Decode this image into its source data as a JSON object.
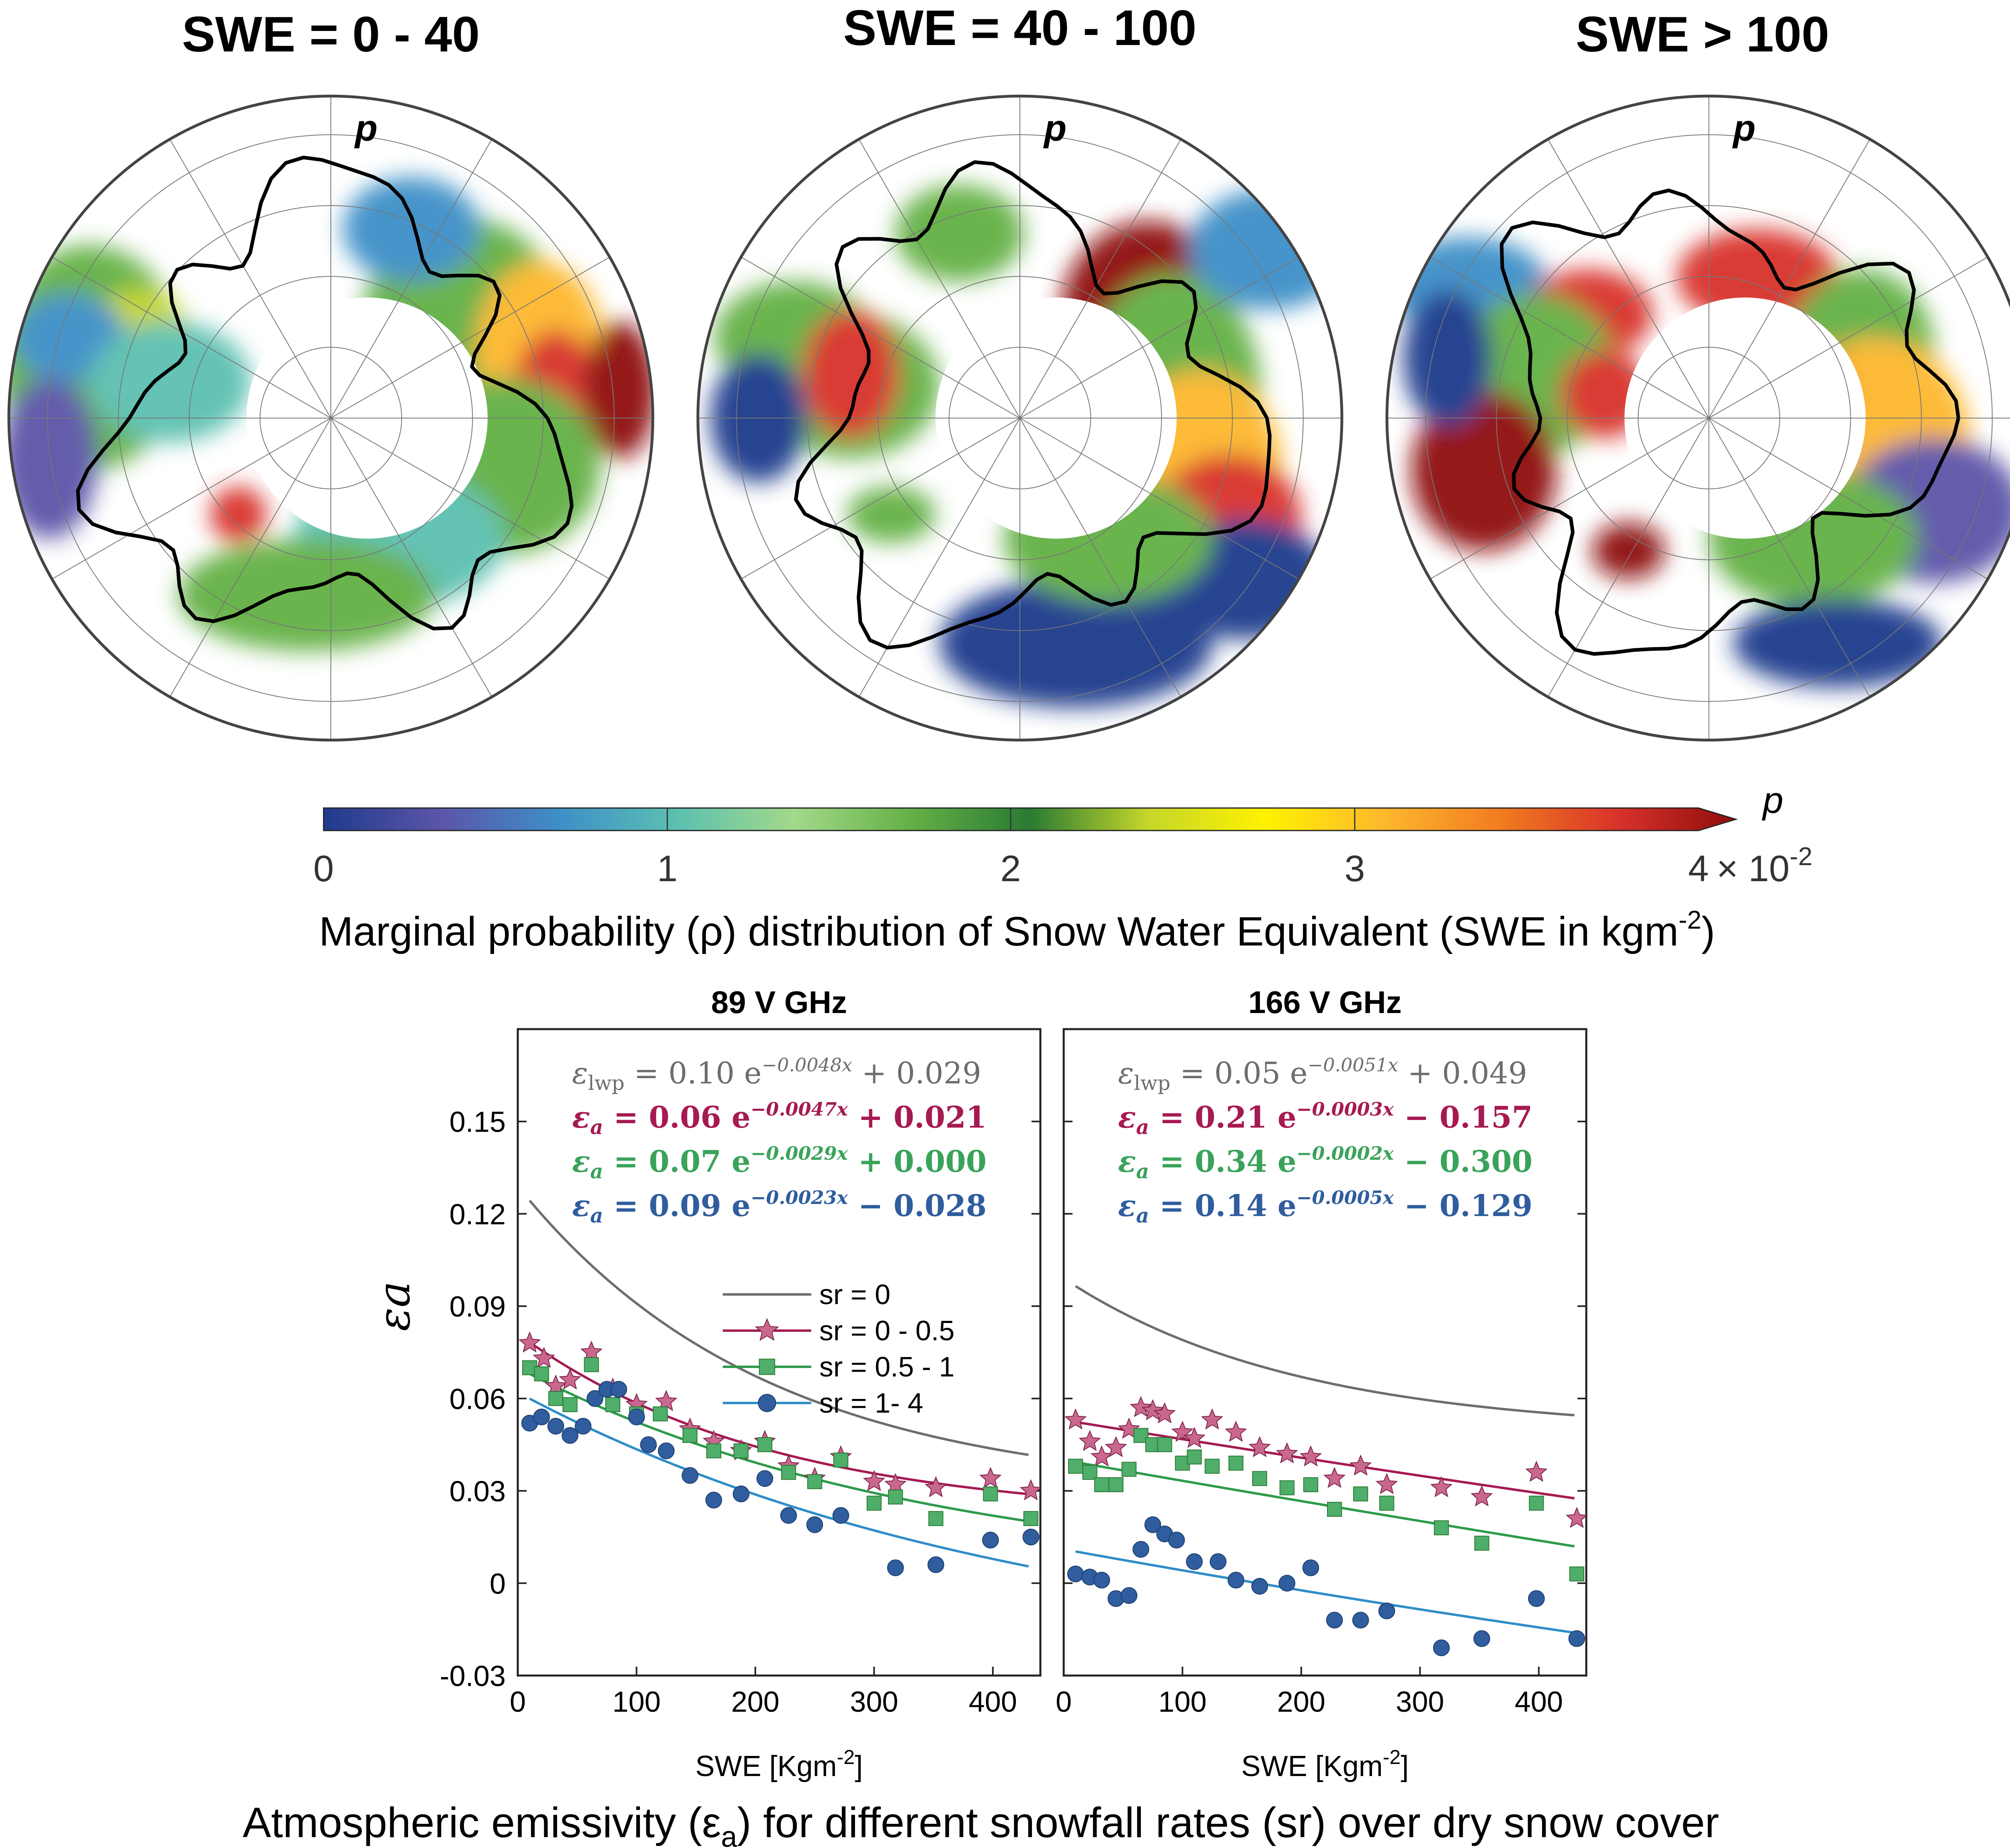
{
  "maps": {
    "titles": [
      "SWE = 0 - 40",
      "SWE = 40 - 100",
      "SWE > 100"
    ],
    "map_label": "p",
    "colorbar": {
      "label": "p",
      "ticks": [
        "0",
        "1",
        "2",
        "3",
        "4"
      ],
      "exponent_label": "× 10",
      "exponent_power": "-2",
      "caption_main": "Marginal probability (ρ) distribution of Snow Water Equivalent (SWE in kgm",
      "caption_power": "-2",
      "caption_end": ")",
      "colors": [
        "#1f3b8c",
        "#5c55a8",
        "#3d8fc7",
        "#5cc0b0",
        "#a3d98a",
        "#63b045",
        "#2a7a33",
        "#c4d62a",
        "#fff200",
        "#fdb82d",
        "#f17c20",
        "#d8322a",
        "#8f0d0d"
      ]
    }
  },
  "bottom_caption": {
    "prefix": "Atmospheric emissivity (ε",
    "sub": "a",
    "suffix": ") for different snowfall rates (sr) over dry snow cover"
  },
  "chart_data": [
    {
      "type": "scatter",
      "title": "89 V GHz",
      "xlabel": "SWE [Kgm",
      "xlabel_power": "-2",
      "xlabel_end": "]",
      "ylabel": "εa",
      "xlim": [
        0,
        440
      ],
      "ylim": [
        -0.03,
        0.18
      ],
      "xticks": [
        0,
        100,
        200,
        300,
        400
      ],
      "yticks": [
        -0.03,
        0,
        0.03,
        0.06,
        0.09,
        0.12,
        0.15
      ],
      "ytick_labels": [
        "-0.03",
        "0",
        "0.03",
        "0.06",
        "0.09",
        "0.12",
        "0.15"
      ],
      "equations": [
        {
          "lhs": "ε",
          "lhs_sub": "lwp",
          "coef": "0.10",
          "exp": "−0.0048x",
          "tail": "+ 0.029",
          "color": "#6d6d6d"
        },
        {
          "lhs": "ε",
          "lhs_sub": "a",
          "coef": "0.06",
          "exp": "−0.0047x",
          "tail": "+ 0.021",
          "color": "#a61a52"
        },
        {
          "lhs": "ε",
          "lhs_sub": "a",
          "coef": "0.07",
          "exp": "−0.0029x",
          "tail": "+ 0.000",
          "color": "#3aa35a"
        },
        {
          "lhs": "ε",
          "lhs_sub": "a",
          "coef": "0.09",
          "exp": "−0.0023x",
          "tail": "− 0.028",
          "color": "#2f5d9e"
        }
      ],
      "legend": [
        "sr = 0",
        "sr = 0 - 0.5",
        "sr = 0.5 - 1",
        "sr = 1- 4"
      ],
      "fits": [
        {
          "a": 0.1,
          "b": 0.0048,
          "c": 0.029
        },
        {
          "a": 0.06,
          "b": 0.0047,
          "c": 0.021
        },
        {
          "a": 0.07,
          "b": 0.0029,
          "c": 0.0
        },
        {
          "a": 0.09,
          "b": 0.0023,
          "c": -0.028
        }
      ],
      "points": [
        [],
        [
          [
            10,
            0.078
          ],
          [
            22,
            0.073
          ],
          [
            32,
            0.064
          ],
          [
            44,
            0.066
          ],
          [
            62,
            0.075
          ],
          [
            80,
            0.063
          ],
          [
            100,
            0.058
          ],
          [
            125,
            0.059
          ],
          [
            145,
            0.05
          ],
          [
            165,
            0.046
          ],
          [
            188,
            0.043
          ],
          [
            208,
            0.046
          ],
          [
            228,
            0.038
          ],
          [
            250,
            0.034
          ],
          [
            272,
            0.041
          ],
          [
            300,
            0.033
          ],
          [
            318,
            0.032
          ],
          [
            352,
            0.031
          ],
          [
            398,
            0.034
          ],
          [
            432,
            0.03
          ]
        ],
        [
          [
            10,
            0.07
          ],
          [
            20,
            0.068
          ],
          [
            32,
            0.06
          ],
          [
            44,
            0.058
          ],
          [
            62,
            0.071
          ],
          [
            80,
            0.058
          ],
          [
            100,
            0.055
          ],
          [
            120,
            0.055
          ],
          [
            145,
            0.048
          ],
          [
            165,
            0.043
          ],
          [
            188,
            0.043
          ],
          [
            208,
            0.045
          ],
          [
            228,
            0.036
          ],
          [
            250,
            0.033
          ],
          [
            272,
            0.04
          ],
          [
            300,
            0.026
          ],
          [
            318,
            0.028
          ],
          [
            352,
            0.021
          ],
          [
            398,
            0.029
          ],
          [
            432,
            0.021
          ]
        ],
        [
          [
            10,
            0.052
          ],
          [
            20,
            0.054
          ],
          [
            32,
            0.051
          ],
          [
            44,
            0.048
          ],
          [
            55,
            0.051
          ],
          [
            65,
            0.06
          ],
          [
            75,
            0.063
          ],
          [
            85,
            0.063
          ],
          [
            100,
            0.054
          ],
          [
            110,
            0.045
          ],
          [
            125,
            0.043
          ],
          [
            145,
            0.035
          ],
          [
            165,
            0.027
          ],
          [
            188,
            0.029
          ],
          [
            208,
            0.034
          ],
          [
            228,
            0.022
          ],
          [
            250,
            0.019
          ],
          [
            272,
            0.022
          ],
          [
            318,
            0.005
          ],
          [
            352,
            0.006
          ],
          [
            398,
            0.014
          ],
          [
            432,
            0.015
          ]
        ]
      ]
    },
    {
      "type": "scatter",
      "title": "166 V GHz",
      "xlabel": "SWE [Kgm",
      "xlabel_power": "-2",
      "xlabel_end": "]",
      "ylabel": "",
      "xlim": [
        0,
        440
      ],
      "ylim": [
        -0.03,
        0.18
      ],
      "xticks": [
        0,
        100,
        200,
        300,
        400
      ],
      "yticks": [
        -0.03,
        0,
        0.03,
        0.06,
        0.09,
        0.12,
        0.15
      ],
      "equations": [
        {
          "lhs": "ε",
          "lhs_sub": "lwp",
          "coef": "0.05",
          "exp": "−0.0051x",
          "tail": "+ 0.049",
          "color": "#6d6d6d"
        },
        {
          "lhs": "ε",
          "lhs_sub": "a",
          "coef": "0.21",
          "exp": "−0.0003x",
          "tail": "− 0.157",
          "color": "#a61a52"
        },
        {
          "lhs": "ε",
          "lhs_sub": "a",
          "coef": "0.34",
          "exp": "−0.0002x",
          "tail": "− 0.300",
          "color": "#3aa35a"
        },
        {
          "lhs": "ε",
          "lhs_sub": "a",
          "coef": "0.14",
          "exp": "−0.0005x",
          "tail": "− 0.129",
          "color": "#2f5d9e"
        }
      ],
      "fits": [
        {
          "a": 0.05,
          "b": 0.0051,
          "c": 0.049
        },
        {
          "a": 0.21,
          "b": 0.0003,
          "c": -0.157
        },
        {
          "a": 0.34,
          "b": 0.0002,
          "c": -0.3
        },
        {
          "a": 0.14,
          "b": 0.0005,
          "c": -0.129
        }
      ],
      "points": [
        [],
        [
          [
            10,
            0.053
          ],
          [
            22,
            0.046
          ],
          [
            32,
            0.041
          ],
          [
            44,
            0.044
          ],
          [
            55,
            0.05
          ],
          [
            65,
            0.057
          ],
          [
            75,
            0.056
          ],
          [
            85,
            0.055
          ],
          [
            100,
            0.049
          ],
          [
            110,
            0.047
          ],
          [
            125,
            0.053
          ],
          [
            145,
            0.049
          ],
          [
            165,
            0.044
          ],
          [
            188,
            0.042
          ],
          [
            208,
            0.041
          ],
          [
            228,
            0.034
          ],
          [
            250,
            0.038
          ],
          [
            272,
            0.032
          ],
          [
            318,
            0.031
          ],
          [
            352,
            0.028
          ],
          [
            398,
            0.036
          ],
          [
            432,
            0.021
          ]
        ],
        [
          [
            10,
            0.038
          ],
          [
            22,
            0.036
          ],
          [
            32,
            0.032
          ],
          [
            44,
            0.032
          ],
          [
            55,
            0.037
          ],
          [
            65,
            0.048
          ],
          [
            75,
            0.045
          ],
          [
            85,
            0.045
          ],
          [
            100,
            0.039
          ],
          [
            110,
            0.041
          ],
          [
            125,
            0.038
          ],
          [
            145,
            0.039
          ],
          [
            165,
            0.034
          ],
          [
            188,
            0.031
          ],
          [
            208,
            0.032
          ],
          [
            228,
            0.024
          ],
          [
            250,
            0.029
          ],
          [
            272,
            0.026
          ],
          [
            318,
            0.018
          ],
          [
            352,
            0.013
          ],
          [
            398,
            0.026
          ],
          [
            432,
            0.003
          ]
        ],
        [
          [
            10,
            0.003
          ],
          [
            22,
            0.002
          ],
          [
            32,
            0.001
          ],
          [
            44,
            -0.005
          ],
          [
            55,
            -0.004
          ],
          [
            65,
            0.011
          ],
          [
            75,
            0.019
          ],
          [
            85,
            0.016
          ],
          [
            95,
            0.014
          ],
          [
            110,
            0.007
          ],
          [
            130,
            0.007
          ],
          [
            145,
            0.001
          ],
          [
            165,
            -0.001
          ],
          [
            188,
            0.0
          ],
          [
            208,
            0.005
          ],
          [
            228,
            -0.012
          ],
          [
            250,
            -0.012
          ],
          [
            272,
            -0.009
          ],
          [
            318,
            -0.021
          ],
          [
            352,
            -0.018
          ],
          [
            398,
            -0.005
          ],
          [
            432,
            -0.018
          ]
        ]
      ]
    }
  ]
}
